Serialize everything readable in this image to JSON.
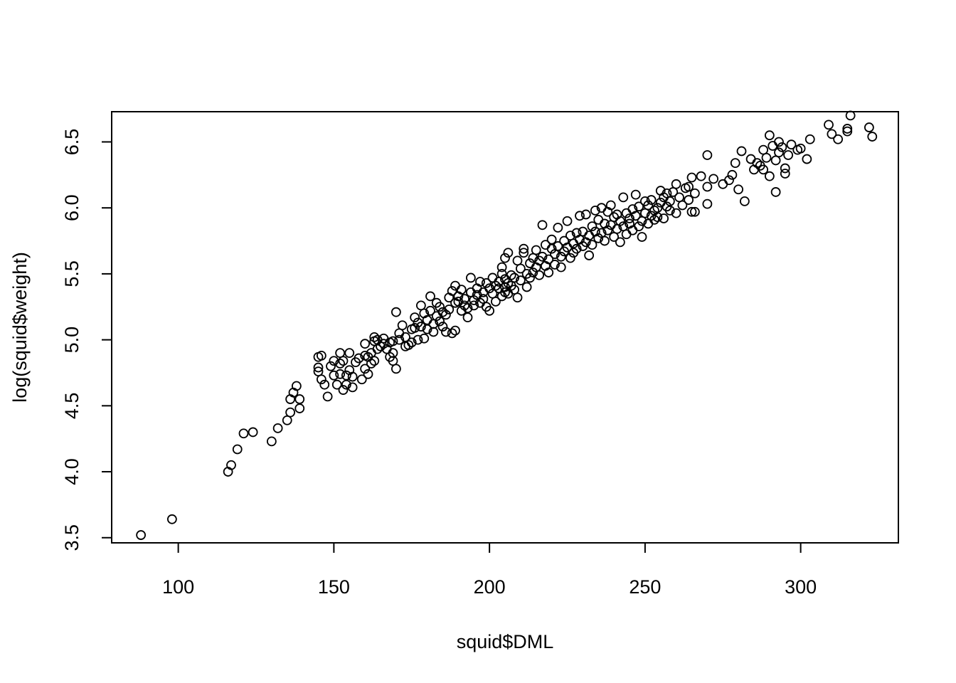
{
  "chart_data": {
    "type": "scatter",
    "title": "",
    "xlabel": "squid$DML",
    "ylabel": "log(squid$weight)",
    "xlim": [
      78.6,
      331.4
    ],
    "ylim": [
      3.461,
      6.729
    ],
    "x_ticks": [
      100,
      150,
      200,
      250,
      300
    ],
    "x_tick_labels": [
      "100",
      "150",
      "200",
      "250",
      "300"
    ],
    "y_ticks": [
      3.5,
      4.0,
      4.5,
      5.0,
      5.5,
      6.0,
      6.5
    ],
    "y_tick_labels": [
      "3.5",
      "4.0",
      "4.5",
      "5.0",
      "5.5",
      "6.0",
      "6.5"
    ],
    "grid": false,
    "legend": "none",
    "marker": "open-circle",
    "marker_color": "#000000",
    "points": [
      [
        88,
        3.52
      ],
      [
        98,
        3.64
      ],
      [
        116,
        4.0
      ],
      [
        117,
        4.05
      ],
      [
        119,
        4.17
      ],
      [
        121,
        4.29
      ],
      [
        124,
        4.3
      ],
      [
        130,
        4.23
      ],
      [
        132,
        4.33
      ],
      [
        135,
        4.39
      ],
      [
        136,
        4.45
      ],
      [
        136,
        4.55
      ],
      [
        137,
        4.6
      ],
      [
        138,
        4.65
      ],
      [
        139,
        4.48
      ],
      [
        139,
        4.55
      ],
      [
        145,
        4.87
      ],
      [
        145,
        4.79
      ],
      [
        145,
        4.76
      ],
      [
        146,
        4.88
      ],
      [
        146,
        4.7
      ],
      [
        147,
        4.66
      ],
      [
        148,
        4.57
      ],
      [
        149,
        4.8
      ],
      [
        150,
        4.84
      ],
      [
        150,
        4.73
      ],
      [
        151,
        4.66
      ],
      [
        152,
        4.74
      ],
      [
        152,
        4.9
      ],
      [
        152,
        4.82
      ],
      [
        153,
        4.62
      ],
      [
        153,
        4.84
      ],
      [
        154,
        4.73
      ],
      [
        154,
        4.66
      ],
      [
        155,
        4.9
      ],
      [
        155,
        4.77
      ],
      [
        156,
        4.72
      ],
      [
        156,
        4.64
      ],
      [
        157,
        4.83
      ],
      [
        158,
        4.86
      ],
      [
        159,
        4.7
      ],
      [
        160,
        4.88
      ],
      [
        160,
        4.97
      ],
      [
        160,
        4.78
      ],
      [
        161,
        4.74
      ],
      [
        161,
        4.87
      ],
      [
        162,
        4.9
      ],
      [
        162,
        4.82
      ],
      [
        163,
        4.99
      ],
      [
        163,
        5.02
      ],
      [
        163,
        4.84
      ],
      [
        164,
        4.93
      ],
      [
        164,
        5.0
      ],
      [
        165,
        4.95
      ],
      [
        166,
        4.97
      ],
      [
        166,
        5.01
      ],
      [
        167,
        4.93
      ],
      [
        168,
        4.98
      ],
      [
        168,
        4.87
      ],
      [
        169,
        4.84
      ],
      [
        169,
        4.99
      ],
      [
        169,
        4.9
      ],
      [
        170,
        5.21
      ],
      [
        170,
        4.78
      ],
      [
        171,
        5.05
      ],
      [
        171,
        5.0
      ],
      [
        172,
        5.11
      ],
      [
        173,
        5.02
      ],
      [
        173,
        4.95
      ],
      [
        174,
        4.96
      ],
      [
        175,
        5.08
      ],
      [
        175,
        4.98
      ],
      [
        176,
        5.17
      ],
      [
        176,
        5.09
      ],
      [
        177,
        5.0
      ],
      [
        177,
        5.13
      ],
      [
        178,
        5.26
      ],
      [
        178,
        5.1
      ],
      [
        179,
        5.2
      ],
      [
        179,
        5.01
      ],
      [
        180,
        5.15
      ],
      [
        180,
        5.08
      ],
      [
        181,
        5.33
      ],
      [
        181,
        5.22
      ],
      [
        182,
        5.12
      ],
      [
        182,
        5.06
      ],
      [
        183,
        5.18
      ],
      [
        183,
        5.28
      ],
      [
        184,
        5.25
      ],
      [
        184,
        5.14
      ],
      [
        185,
        5.1
      ],
      [
        185,
        5.21
      ],
      [
        186,
        5.19
      ],
      [
        186,
        5.06
      ],
      [
        187,
        5.32
      ],
      [
        187,
        5.23
      ],
      [
        188,
        5.05
      ],
      [
        188,
        5.37
      ],
      [
        189,
        5.28
      ],
      [
        189,
        5.41
      ],
      [
        189,
        5.07
      ],
      [
        190,
        5.33
      ],
      [
        190,
        5.29
      ],
      [
        191,
        5.22
      ],
      [
        191,
        5.38
      ],
      [
        192,
        5.26
      ],
      [
        192,
        5.31
      ],
      [
        193,
        5.24
      ],
      [
        193,
        5.17
      ],
      [
        194,
        5.36
      ],
      [
        194,
        5.47
      ],
      [
        195,
        5.3
      ],
      [
        195,
        5.26
      ],
      [
        196,
        5.39
      ],
      [
        196,
        5.34
      ],
      [
        197,
        5.44
      ],
      [
        197,
        5.28
      ],
      [
        198,
        5.36
      ],
      [
        198,
        5.31
      ],
      [
        199,
        5.43
      ],
      [
        199,
        5.25
      ],
      [
        200,
        5.39
      ],
      [
        200,
        5.22
      ],
      [
        201,
        5.35
      ],
      [
        201,
        5.47
      ],
      [
        202,
        5.29
      ],
      [
        202,
        5.41
      ],
      [
        203,
        5.39
      ],
      [
        203,
        5.44
      ],
      [
        204,
        5.33
      ],
      [
        204,
        5.5
      ],
      [
        204,
        5.55
      ],
      [
        205,
        5.36
      ],
      [
        205,
        5.4
      ],
      [
        205,
        5.62
      ],
      [
        205,
        5.46
      ],
      [
        206,
        5.43
      ],
      [
        206,
        5.35
      ],
      [
        206,
        5.66
      ],
      [
        207,
        5.49
      ],
      [
        207,
        5.41
      ],
      [
        208,
        5.47
      ],
      [
        208,
        5.38
      ],
      [
        209,
        5.6
      ],
      [
        209,
        5.32
      ],
      [
        210,
        5.54
      ],
      [
        210,
        5.45
      ],
      [
        211,
        5.69
      ],
      [
        211,
        5.66
      ],
      [
        212,
        5.4
      ],
      [
        212,
        5.5
      ],
      [
        213,
        5.47
      ],
      [
        213,
        5.58
      ],
      [
        214,
        5.62
      ],
      [
        214,
        5.51
      ],
      [
        215,
        5.55
      ],
      [
        215,
        5.68
      ],
      [
        216,
        5.49
      ],
      [
        216,
        5.6
      ],
      [
        217,
        5.87
      ],
      [
        217,
        5.63
      ],
      [
        218,
        5.56
      ],
      [
        218,
        5.72
      ],
      [
        219,
        5.61
      ],
      [
        219,
        5.51
      ],
      [
        220,
        5.69
      ],
      [
        220,
        5.76
      ],
      [
        221,
        5.57
      ],
      [
        221,
        5.65
      ],
      [
        222,
        5.85
      ],
      [
        222,
        5.71
      ],
      [
        223,
        5.63
      ],
      [
        223,
        5.55
      ],
      [
        224,
        5.75
      ],
      [
        224,
        5.67
      ],
      [
        225,
        5.9
      ],
      [
        225,
        5.7
      ],
      [
        226,
        5.62
      ],
      [
        226,
        5.79
      ],
      [
        227,
        5.73
      ],
      [
        227,
        5.66
      ],
      [
        228,
        5.81
      ],
      [
        228,
        5.69
      ],
      [
        229,
        5.94
      ],
      [
        229,
        5.76
      ],
      [
        230,
        5.71
      ],
      [
        230,
        5.82
      ],
      [
        231,
        5.95
      ],
      [
        231,
        5.74
      ],
      [
        232,
        5.64
      ],
      [
        232,
        5.79
      ],
      [
        233,
        5.86
      ],
      [
        233,
        5.72
      ],
      [
        234,
        5.98
      ],
      [
        234,
        5.82
      ],
      [
        235,
        5.77
      ],
      [
        235,
        5.91
      ],
      [
        236,
        6.0
      ],
      [
        236,
        5.81
      ],
      [
        237,
        5.88
      ],
      [
        237,
        5.75
      ],
      [
        238,
        5.97
      ],
      [
        238,
        5.83
      ],
      [
        239,
        6.02
      ],
      [
        239,
        5.87
      ],
      [
        240,
        5.93
      ],
      [
        240,
        5.78
      ],
      [
        241,
        5.95
      ],
      [
        241,
        5.84
      ],
      [
        242,
        5.9
      ],
      [
        242,
        5.74
      ],
      [
        243,
        6.08
      ],
      [
        243,
        5.86
      ],
      [
        244,
        5.96
      ],
      [
        244,
        5.8
      ],
      [
        245,
        5.92
      ],
      [
        245,
        5.88
      ],
      [
        246,
        5.99
      ],
      [
        246,
        5.83
      ],
      [
        247,
        6.1
      ],
      [
        247,
        5.94
      ],
      [
        248,
        5.86
      ],
      [
        248,
        6.01
      ],
      [
        249,
        5.9
      ],
      [
        249,
        5.78
      ],
      [
        250,
        6.05
      ],
      [
        250,
        5.96
      ],
      [
        251,
        5.88
      ],
      [
        251,
        6.02
      ],
      [
        252,
        6.06
      ],
      [
        252,
        5.94
      ],
      [
        253,
        5.98
      ],
      [
        253,
        5.91
      ],
      [
        254,
        6.0
      ],
      [
        254,
        5.93
      ],
      [
        255,
        6.13
      ],
      [
        255,
        6.04
      ],
      [
        256,
        5.92
      ],
      [
        256,
        6.08
      ],
      [
        257,
        6.01
      ],
      [
        257,
        6.11
      ],
      [
        258,
        5.98
      ],
      [
        258,
        6.05
      ],
      [
        259,
        6.12
      ],
      [
        260,
        6.18
      ],
      [
        260,
        5.96
      ],
      [
        261,
        6.08
      ],
      [
        262,
        6.02
      ],
      [
        263,
        6.15
      ],
      [
        264,
        6.16
      ],
      [
        264,
        6.06
      ],
      [
        265,
        5.97
      ],
      [
        265,
        6.23
      ],
      [
        266,
        6.11
      ],
      [
        266,
        5.97
      ],
      [
        268,
        6.24
      ],
      [
        270,
        6.4
      ],
      [
        270,
        6.16
      ],
      [
        270,
        6.03
      ],
      [
        272,
        6.22
      ],
      [
        275,
        6.18
      ],
      [
        277,
        6.21
      ],
      [
        278,
        6.25
      ],
      [
        279,
        6.34
      ],
      [
        280,
        6.14
      ],
      [
        281,
        6.43
      ],
      [
        282,
        6.05
      ],
      [
        284,
        6.37
      ],
      [
        285,
        6.29
      ],
      [
        286,
        6.34
      ],
      [
        287,
        6.32
      ],
      [
        288,
        6.44
      ],
      [
        288,
        6.29
      ],
      [
        289,
        6.38
      ],
      [
        290,
        6.55
      ],
      [
        290,
        6.24
      ],
      [
        291,
        6.47
      ],
      [
        292,
        6.12
      ],
      [
        292,
        6.36
      ],
      [
        293,
        6.5
      ],
      [
        293,
        6.42
      ],
      [
        294,
        6.46
      ],
      [
        295,
        6.3
      ],
      [
        295,
        6.26
      ],
      [
        296,
        6.4
      ],
      [
        297,
        6.48
      ],
      [
        299,
        6.44
      ],
      [
        300,
        6.45
      ],
      [
        302,
        6.37
      ],
      [
        303,
        6.52
      ],
      [
        309,
        6.63
      ],
      [
        310,
        6.56
      ],
      [
        312,
        6.52
      ],
      [
        315,
        6.6
      ],
      [
        315,
        6.58
      ],
      [
        316,
        6.7
      ],
      [
        322,
        6.61
      ],
      [
        323,
        6.54
      ]
    ]
  }
}
